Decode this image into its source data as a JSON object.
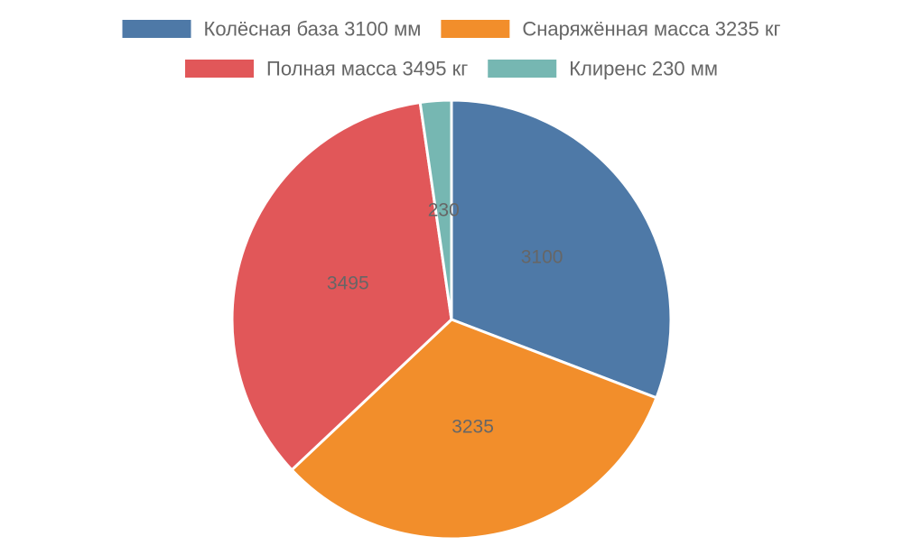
{
  "chart_data": {
    "type": "pie",
    "categories": [
      "Колёсная база 3100 мм",
      "Снаряжённая масса 3235 кг",
      "Полная масса 3495 кг",
      "Клиренс 230 мм"
    ],
    "values": [
      3100,
      3235,
      3495,
      230
    ],
    "data_labels": [
      "3100",
      "3235",
      "3495",
      "230"
    ],
    "colors": [
      "#4e79a7",
      "#f28e2b",
      "#e15759",
      "#76b7b2"
    ],
    "legend_position": "top",
    "start_angle": "12 o'clock",
    "direction": "clockwise"
  }
}
